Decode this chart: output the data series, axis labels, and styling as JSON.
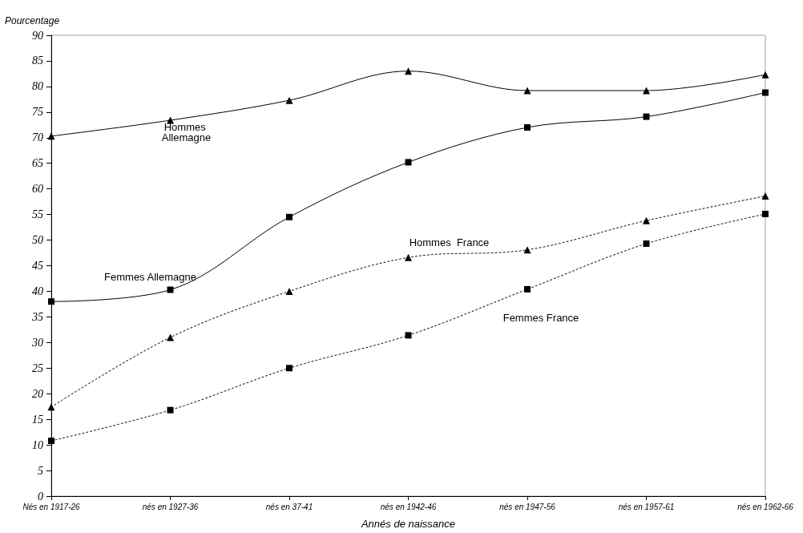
{
  "chart_data": {
    "type": "line",
    "xlabel": "Annés de naissance",
    "ylabel": "Pourcentage",
    "categories": [
      "Nés en 1917-26",
      "nés en 1927-36",
      "nés en 37-41",
      "nés en 1942-46",
      "nés en 1947-56",
      "nés en 1957-61",
      "nés en 1962-66"
    ],
    "series": [
      {
        "name": "Hommes Allemagne",
        "color": "#000000",
        "marker": "triangle",
        "line_style": "solid",
        "values": [
          70.3,
          73.4,
          77.3,
          83.0,
          79.2,
          79.2,
          82.3
        ]
      },
      {
        "name": "Femmes Allemagne",
        "color": "#000000",
        "marker": "square",
        "line_style": "solid",
        "values": [
          38.0,
          40.3,
          54.5,
          65.2,
          72.0,
          74.1,
          78.8
        ]
      },
      {
        "name": "Hommes  France",
        "color": "#000000",
        "marker": "triangle",
        "line_style": "dotted",
        "values": [
          17.4,
          31.0,
          40.0,
          46.6,
          48.1,
          53.8,
          58.6
        ]
      },
      {
        "name": "Femmes France",
        "color": "#000000",
        "marker": "square",
        "line_style": "dotted",
        "values": [
          10.8,
          16.8,
          25.0,
          31.4,
          40.4,
          49.3,
          55.1
        ]
      }
    ],
    "ylim": [
      0,
      90
    ],
    "yticks": [
      0,
      5,
      10,
      15,
      20,
      25,
      30,
      35,
      40,
      45,
      50,
      55,
      60,
      65,
      70,
      75,
      80,
      85,
      90
    ],
    "grid": false,
    "legend": false
  }
}
